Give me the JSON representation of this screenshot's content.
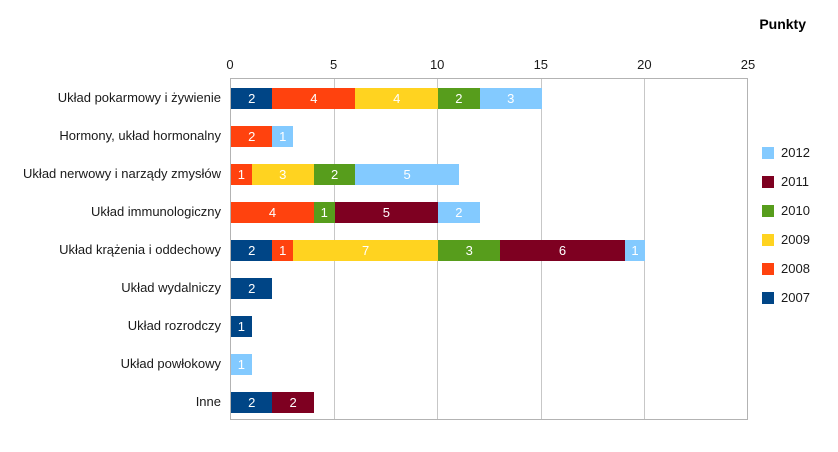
{
  "chart_data": {
    "type": "bar",
    "orientation": "horizontal",
    "stacked": true,
    "title": "Punkty",
    "xlim": [
      0,
      25
    ],
    "x_ticks": [
      0,
      5,
      10,
      15,
      20,
      25
    ],
    "grid": true,
    "legend_position": "right",
    "legend_order": [
      "2012",
      "2011",
      "2010",
      "2009",
      "2008",
      "2007"
    ],
    "categories": [
      "Układ pokarmowy i żywienie",
      "Hormony, układ hormonalny",
      "Układ nerwowy i narządy zmysłów",
      "Układ immunologiczny",
      "Układ krążenia i oddechowy",
      "Układ wydalniczy",
      "Układ rozrodczy",
      "Układ powłokowy",
      "Inne"
    ],
    "series": [
      {
        "name": "2007",
        "color": "#004586",
        "values": [
          2,
          0,
          0,
          0,
          2,
          2,
          1,
          0,
          2
        ]
      },
      {
        "name": "2008",
        "color": "#FF420E",
        "values": [
          4,
          2,
          1,
          4,
          1,
          0,
          0,
          0,
          0
        ]
      },
      {
        "name": "2009",
        "color": "#FFD320",
        "values": [
          4,
          0,
          3,
          0,
          7,
          0,
          0,
          0,
          0
        ]
      },
      {
        "name": "2010",
        "color": "#579D1C",
        "values": [
          2,
          0,
          2,
          1,
          3,
          0,
          0,
          0,
          0
        ]
      },
      {
        "name": "2011",
        "color": "#7E0021",
        "values": [
          0,
          0,
          0,
          5,
          6,
          0,
          0,
          0,
          2
        ]
      },
      {
        "name": "2012",
        "color": "#83CAFF",
        "values": [
          3,
          1,
          5,
          2,
          1,
          0,
          0,
          1,
          0
        ]
      }
    ]
  }
}
